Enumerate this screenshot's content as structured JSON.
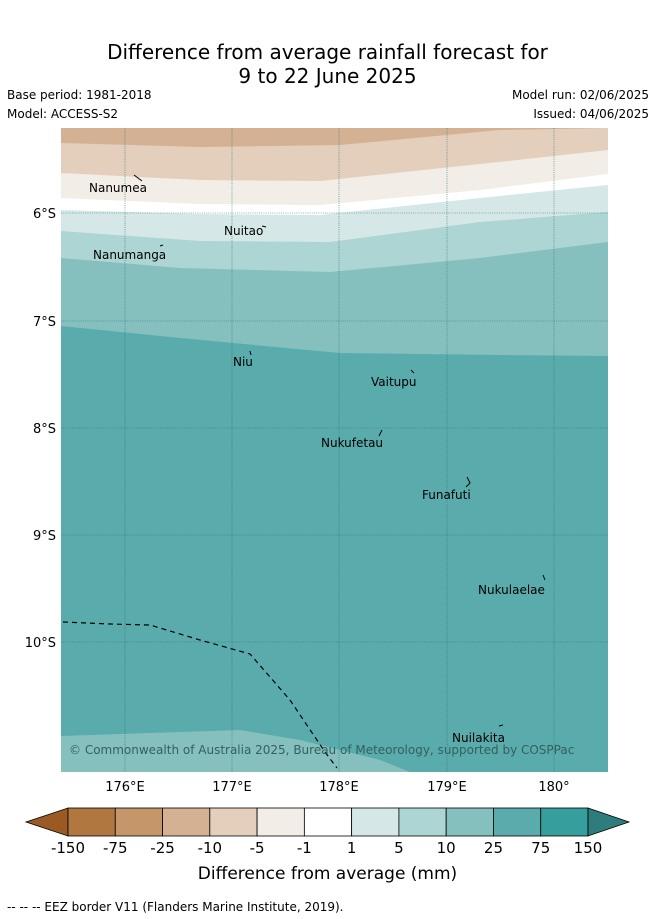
{
  "title_line1": "Difference from average rainfall forecast for",
  "title_line2": "9 to 22 June 2025",
  "base_period": "Base period: 1981-2018",
  "model": "Model: ACCESS-S2",
  "model_run": "Model run: 02/06/2025",
  "issued": "Issued: 04/06/2025",
  "copyright": "© Commonwealth of Australia 2025, Bureau of Meteorology, supported by COSPPac",
  "map": {
    "lat_labels": [
      "6°S",
      "7°S",
      "8°S",
      "9°S",
      "10°S"
    ],
    "lon_labels": [
      "176°E",
      "177°E",
      "178°E",
      "179°E",
      "180°"
    ],
    "places": [
      "Nanumea",
      "Nuitao",
      "Nanumanga",
      "Niu",
      "Vaitupu",
      "Nukufetau",
      "Funafuti",
      "Nukulaelae",
      "Nuilakita"
    ]
  },
  "colorbar": {
    "title": "Difference from average (mm)",
    "ticks": [
      "-150",
      "-75",
      "-25",
      "-10",
      "-5",
      "-1",
      "1",
      "5",
      "10",
      "25",
      "75",
      "150"
    ],
    "colors": [
      "#9b5a24",
      "#b07840",
      "#c4966a",
      "#d4b192",
      "#e4cfbd",
      "#f2ede7",
      "#ffffff",
      "#d5e8e7",
      "#acd5d4",
      "#85c0bf",
      "#5aabab",
      "#369e9c",
      "#2e7c7b"
    ]
  },
  "footnote": "-- -- -- EEZ border V11 (Flanders Marine Institute, 2019)."
}
